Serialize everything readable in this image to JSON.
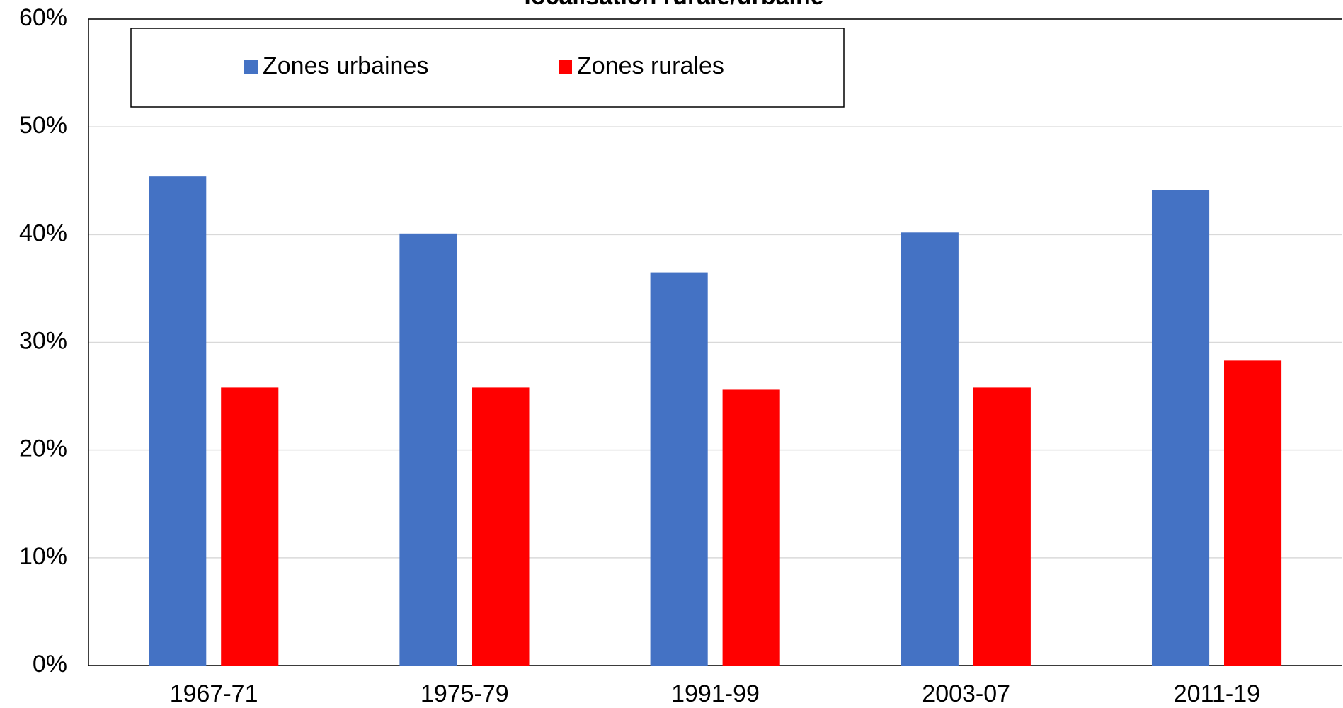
{
  "chart_data": {
    "type": "bar",
    "title": "localisation rurale/urbaine",
    "categories": [
      "1967-71",
      "1975-79",
      "1991-99",
      "2003-07",
      "2011-19"
    ],
    "series": [
      {
        "name": "Zones urbaines",
        "color": "#4472c4",
        "values": [
          45.4,
          40.1,
          36.5,
          40.2,
          44.1
        ]
      },
      {
        "name": "Zones rurales",
        "color": "#ff0000",
        "values": [
          25.8,
          25.8,
          25.6,
          25.8,
          28.3
        ]
      }
    ],
    "ylim": [
      0,
      60
    ],
    "yticks": [
      {
        "value": 0,
        "label": "0%"
      },
      {
        "value": 10,
        "label": "10%"
      },
      {
        "value": 20,
        "label": "20%"
      },
      {
        "value": 30,
        "label": "30%"
      },
      {
        "value": 40,
        "label": "40%"
      },
      {
        "value": 50,
        "label": "50%"
      },
      {
        "value": 60,
        "label": "60%"
      }
    ],
    "grid": true,
    "legend": "top-left"
  }
}
